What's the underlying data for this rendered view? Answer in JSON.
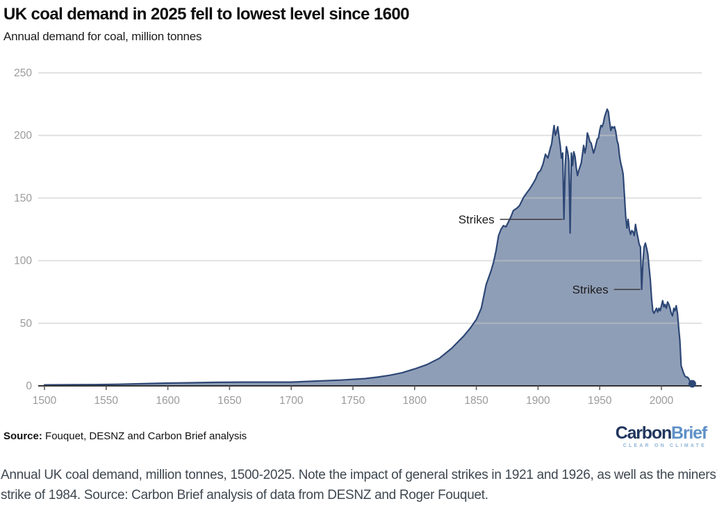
{
  "header": {
    "title": "UK coal demand in 2025 fell to lowest level since 1600",
    "subtitle": "Annual demand for coal, million tonnes"
  },
  "footer": {
    "source_label": "Source:",
    "source_text": "Fouquet, DESNZ and Carbon Brief analysis",
    "logo": {
      "word1": "Carbon",
      "word2": "Brief",
      "tagline": "CLEAR ON CLIMATE"
    }
  },
  "caption": {
    "lines": [
      "Annual UK coal demand, million tonnes, 1500-2025. Note the impact of general strikes in 1921 and 1926, as well as the miners’",
      "strike of 1984. Source: Carbon Brief analysis of data from DESNZ and Roger Fouquet."
    ]
  },
  "chart_data": {
    "type": "area",
    "title": "UK coal demand in 2025 fell to lowest level since 1600",
    "ylabel": "Annual demand for coal, million tonnes",
    "unit": "million tonnes",
    "xlim": [
      1500,
      2025
    ],
    "ylim": [
      0,
      250
    ],
    "x_ticks": [
      1500,
      1550,
      1600,
      1650,
      1700,
      1750,
      1800,
      1850,
      1900,
      1950,
      2000
    ],
    "y_ticks": [
      0,
      50,
      100,
      150,
      200,
      250
    ],
    "grid": "horizontal",
    "legend": "none",
    "annotations": [
      {
        "label": "Strikes",
        "year": 1921,
        "value": 133,
        "line_len": 90
      },
      {
        "label": "Strikes",
        "year": 1984,
        "value": 77,
        "line_len": 38
      }
    ],
    "end_marker": {
      "year": 2025,
      "value": 2
    },
    "series": [
      {
        "name": "UK annual coal demand (million tonnes)",
        "points": [
          [
            1500,
            0.8
          ],
          [
            1520,
            0.9
          ],
          [
            1540,
            1.0
          ],
          [
            1560,
            1.3
          ],
          [
            1580,
            1.7
          ],
          [
            1600,
            2.2
          ],
          [
            1620,
            2.5
          ],
          [
            1640,
            2.8
          ],
          [
            1660,
            3.0
          ],
          [
            1680,
            3.0
          ],
          [
            1700,
            3.0
          ],
          [
            1720,
            3.8
          ],
          [
            1740,
            4.6
          ],
          [
            1750,
            5.2
          ],
          [
            1760,
            5.8
          ],
          [
            1770,
            7.0
          ],
          [
            1780,
            8.5
          ],
          [
            1790,
            10.5
          ],
          [
            1800,
            13.5
          ],
          [
            1810,
            17
          ],
          [
            1820,
            22
          ],
          [
            1830,
            30
          ],
          [
            1840,
            40
          ],
          [
            1845,
            46
          ],
          [
            1850,
            53
          ],
          [
            1854,
            62
          ],
          [
            1858,
            81
          ],
          [
            1862,
            92
          ],
          [
            1864,
            99
          ],
          [
            1866,
            108
          ],
          [
            1868,
            120
          ],
          [
            1870,
            125
          ],
          [
            1872,
            128
          ],
          [
            1874,
            127
          ],
          [
            1876,
            131
          ],
          [
            1878,
            135
          ],
          [
            1880,
            140
          ],
          [
            1883,
            142
          ],
          [
            1885,
            144
          ],
          [
            1888,
            150
          ],
          [
            1890,
            153
          ],
          [
            1893,
            157
          ],
          [
            1895,
            160
          ],
          [
            1898,
            165
          ],
          [
            1900,
            170
          ],
          [
            1902,
            172
          ],
          [
            1904,
            177
          ],
          [
            1906,
            185
          ],
          [
            1908,
            182
          ],
          [
            1910,
            190
          ],
          [
            1911,
            193
          ],
          [
            1913,
            208
          ],
          [
            1914,
            200
          ],
          [
            1915,
            203
          ],
          [
            1916,
            207
          ],
          [
            1917,
            199
          ],
          [
            1918,
            192
          ],
          [
            1919,
            182
          ],
          [
            1920,
            186
          ],
          [
            1921,
            133
          ],
          [
            1922,
            176
          ],
          [
            1923,
            191
          ],
          [
            1924,
            187
          ],
          [
            1925,
            180
          ],
          [
            1926,
            122
          ],
          [
            1927,
            186
          ],
          [
            1928,
            176
          ],
          [
            1929,
            187
          ],
          [
            1930,
            183
          ],
          [
            1931,
            174
          ],
          [
            1932,
            168
          ],
          [
            1933,
            172
          ],
          [
            1935,
            178
          ],
          [
            1937,
            192
          ],
          [
            1938,
            186
          ],
          [
            1939,
            191
          ],
          [
            1940,
            202
          ],
          [
            1941,
            199
          ],
          [
            1942,
            195
          ],
          [
            1943,
            194
          ],
          [
            1944,
            190
          ],
          [
            1945,
            186
          ],
          [
            1946,
            189
          ],
          [
            1947,
            193
          ],
          [
            1948,
            197
          ],
          [
            1949,
            198
          ],
          [
            1950,
            204
          ],
          [
            1951,
            208
          ],
          [
            1952,
            207
          ],
          [
            1953,
            210
          ],
          [
            1954,
            215
          ],
          [
            1955,
            218
          ],
          [
            1956,
            221
          ],
          [
            1957,
            219
          ],
          [
            1958,
            211
          ],
          [
            1959,
            204
          ],
          [
            1960,
            207
          ],
          [
            1961,
            206
          ],
          [
            1962,
            207
          ],
          [
            1963,
            203
          ],
          [
            1964,
            196
          ],
          [
            1965,
            193
          ],
          [
            1966,
            184
          ],
          [
            1967,
            178
          ],
          [
            1968,
            174
          ],
          [
            1969,
            169
          ],
          [
            1970,
            153
          ],
          [
            1971,
            136
          ],
          [
            1972,
            126
          ],
          [
            1973,
            133
          ],
          [
            1974,
            125
          ],
          [
            1975,
            121
          ],
          [
            1976,
            124
          ],
          [
            1977,
            123
          ],
          [
            1978,
            120
          ],
          [
            1979,
            129
          ],
          [
            1980,
            123
          ],
          [
            1981,
            118
          ],
          [
            1982,
            113
          ],
          [
            1983,
            111
          ],
          [
            1984,
            77
          ],
          [
            1985,
            99
          ],
          [
            1986,
            111
          ],
          [
            1987,
            114
          ],
          [
            1988,
            110
          ],
          [
            1989,
            105
          ],
          [
            1990,
            95
          ],
          [
            1991,
            85
          ],
          [
            1992,
            70
          ],
          [
            1993,
            60
          ],
          [
            1994,
            58
          ],
          [
            1995,
            60
          ],
          [
            1996,
            62
          ],
          [
            1997,
            59
          ],
          [
            1998,
            62
          ],
          [
            1999,
            60
          ],
          [
            2000,
            64
          ],
          [
            2001,
            68
          ],
          [
            2002,
            63
          ],
          [
            2003,
            65
          ],
          [
            2004,
            62
          ],
          [
            2005,
            67
          ],
          [
            2006,
            65
          ],
          [
            2007,
            62
          ],
          [
            2008,
            58
          ],
          [
            2009,
            56
          ],
          [
            2010,
            62
          ],
          [
            2011,
            60
          ],
          [
            2012,
            64
          ],
          [
            2013,
            58
          ],
          [
            2014,
            46
          ],
          [
            2015,
            36
          ],
          [
            2016,
            16
          ],
          [
            2017,
            13
          ],
          [
            2018,
            10
          ],
          [
            2019,
            8
          ],
          [
            2020,
            7
          ],
          [
            2021,
            7
          ],
          [
            2022,
            6
          ],
          [
            2023,
            4
          ],
          [
            2024,
            3
          ],
          [
            2025,
            2
          ]
        ]
      }
    ],
    "colors": {
      "fill": "#8f9eb7",
      "line": "#2d4775",
      "grid": "#c9c9c9",
      "axis": "#333333",
      "tick": "#555555",
      "tick_text": "#9a9a9a",
      "annotation_text": "#1c1c1c",
      "annotation_line": "#3a3a3a"
    }
  }
}
